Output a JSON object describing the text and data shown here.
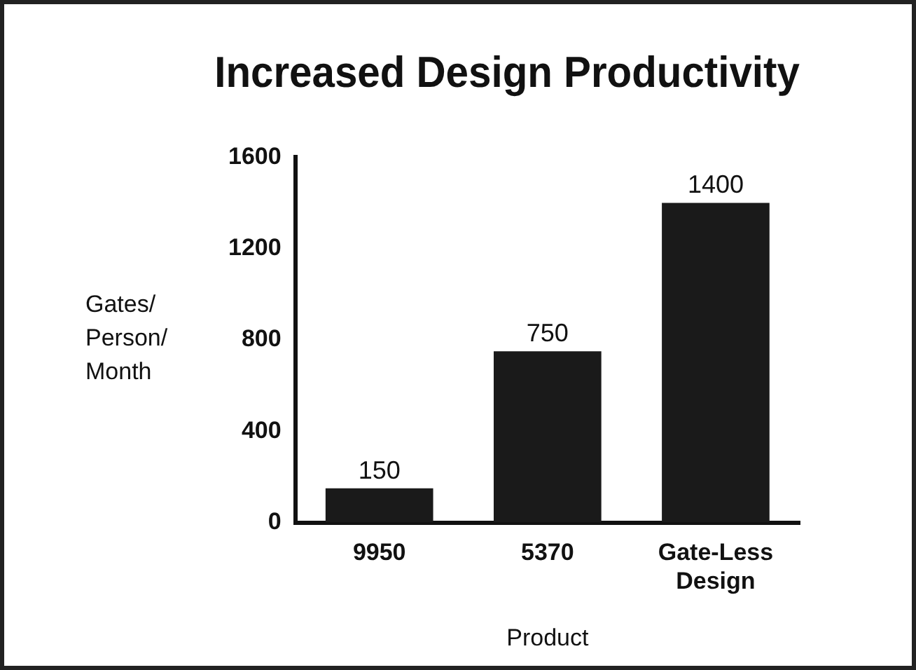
{
  "chart_data": {
    "type": "bar",
    "title": "Increased Design Productivity",
    "xlabel": "Product",
    "ylabel": "Gates/\nPerson/\nMonth",
    "categories": [
      "9950",
      "5370",
      "Gate-Less Design"
    ],
    "values": [
      150,
      750,
      1400
    ],
    "color": "#1a1a1a",
    "ylim": [
      0,
      1600
    ],
    "yticks": [
      0,
      400,
      800,
      1200,
      1600
    ],
    "grid": false,
    "legend": false,
    "data_labels": true
  }
}
